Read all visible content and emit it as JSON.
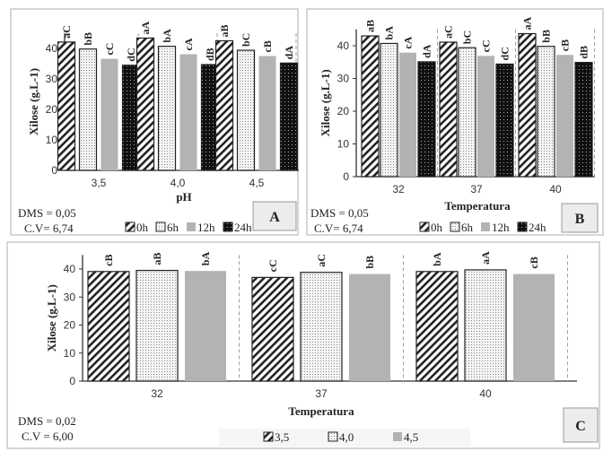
{
  "chart_data": [
    {
      "panel": "A",
      "type": "bar",
      "xlabel": "pH",
      "ylabel": "Xilose (g.L-1)",
      "categories": [
        "3,5",
        "4,0",
        "4,5"
      ],
      "ylim": [
        0,
        45
      ],
      "yticks": [
        0,
        10,
        20,
        30,
        40
      ],
      "legend_position": "bottom",
      "series": [
        {
          "name": "0h",
          "values": [
            42.1,
            43.4,
            42.5
          ],
          "labels": [
            "aC",
            "aA",
            "aB"
          ],
          "fill": "hatch"
        },
        {
          "name": "6h",
          "values": [
            39.8,
            40.7,
            39.4
          ],
          "labels": [
            "bB",
            "bA",
            "bC"
          ],
          "fill": "dots-light"
        },
        {
          "name": "12h",
          "values": [
            36.6,
            38.1,
            37.5
          ],
          "labels": [
            "cC",
            "cA",
            "cB"
          ],
          "fill": "#b3b3b3"
        },
        {
          "name": "24h",
          "values": [
            34.5,
            34.7,
            35.2
          ],
          "labels": [
            "dC",
            "dB",
            "dA"
          ],
          "fill": "dots-dark"
        }
      ],
      "notes": [
        "DMS = 0,05",
        "C.V= 6,74"
      ]
    },
    {
      "panel": "B",
      "type": "bar",
      "xlabel": "Temperatura",
      "ylabel": "Xilose (g.L-1)",
      "categories": [
        "32",
        "37",
        "40"
      ],
      "ylim": [
        0,
        45
      ],
      "yticks": [
        0,
        10,
        20,
        30,
        40
      ],
      "legend_position": "bottom",
      "series": [
        {
          "name": "0h",
          "values": [
            43.0,
            41.1,
            43.7
          ],
          "labels": [
            "aB",
            "aC",
            "aA"
          ],
          "fill": "hatch"
        },
        {
          "name": "6h",
          "values": [
            40.7,
            39.4,
            39.8
          ],
          "labels": [
            "bA",
            "bC",
            "bB"
          ],
          "fill": "dots-light"
        },
        {
          "name": "12h",
          "values": [
            37.9,
            36.9,
            37.2
          ],
          "labels": [
            "cA",
            "cC",
            "cB"
          ],
          "fill": "#b3b3b3"
        },
        {
          "name": "24h",
          "values": [
            35.1,
            34.4,
            34.9
          ],
          "labels": [
            "dA",
            "dC",
            "dB"
          ],
          "fill": "dots-dark"
        }
      ],
      "notes": [
        "DMS = 0,05",
        "C.V= 6,74"
      ]
    },
    {
      "panel": "C",
      "type": "bar",
      "xlabel": "Temperatura",
      "ylabel": "Xilose (g.L-1)",
      "categories": [
        "32",
        "37",
        "40"
      ],
      "ylim": [
        0,
        45
      ],
      "yticks": [
        0,
        10,
        20,
        30,
        40
      ],
      "legend_position": "bottom",
      "series": [
        {
          "name": "3,5",
          "values": [
            39.1,
            37.0,
            39.1
          ],
          "labels": [
            "cB",
            "cC",
            "bA"
          ],
          "fill": "hatch"
        },
        {
          "name": "4,0",
          "values": [
            39.5,
            38.8,
            39.7
          ],
          "labels": [
            "aB",
            "aC",
            "aA"
          ],
          "fill": "dots-light"
        },
        {
          "name": "4,5",
          "values": [
            39.3,
            38.2,
            38.2
          ],
          "labels": [
            "bA",
            "bB",
            "cB"
          ],
          "fill": "#b3b3b3"
        }
      ],
      "notes": [
        "DMS = 0,02",
        "C.V = 6,00"
      ]
    }
  ]
}
